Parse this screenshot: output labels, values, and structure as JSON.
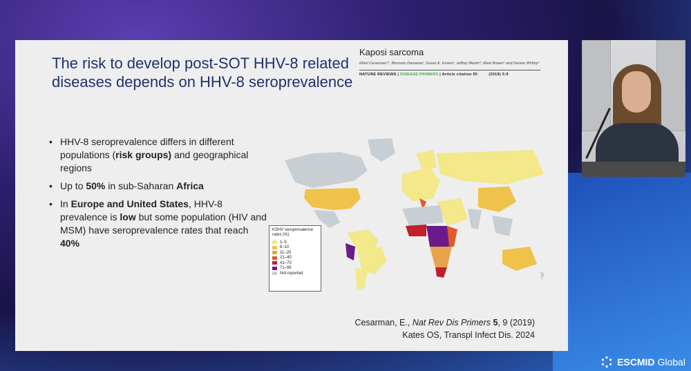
{
  "slide": {
    "title": "The risk to develop post-SOT HHV-8 related diseases depends on HHV-8 seroprevalence",
    "bullets": [
      {
        "parts": [
          {
            "t": "HHV-8 seroprevalence differs in different populations (",
            "b": false
          },
          {
            "t": "risk groups)",
            "b": true
          },
          {
            "t": " and geographical regions",
            "b": false
          }
        ]
      },
      {
        "parts": [
          {
            "t": "Up to ",
            "b": false
          },
          {
            "t": "50%",
            "b": true
          },
          {
            "t": " in sub-Saharan ",
            "b": false
          },
          {
            "t": "Africa",
            "b": true
          }
        ]
      },
      {
        "parts": [
          {
            "t": "In ",
            "b": false
          },
          {
            "t": "Europe and United States",
            "b": true
          },
          {
            "t": ", HHV-8 prevalence is ",
            "b": false
          },
          {
            "t": "low",
            "b": true
          },
          {
            "t": " but some population (HIV and MSM) have seroprevalence rates that reach ",
            "b": false
          },
          {
            "t": "40%",
            "b": true
          }
        ]
      }
    ],
    "paper": {
      "title": "Kaposi sarcoma",
      "authors": "Ethel Cesarman¹*, Blossom Damania², Susan E. Krown³, Jeffrey Martin⁴, Mark Bower⁵ and Denise Whitby⁶",
      "journal_a": "NATURE REVIEWS | ",
      "journal_b": "DISEASE PRIMERS",
      "journal_c": " | Article citation ID:",
      "journal_d": "(2019) 5:9"
    },
    "legend": {
      "title": "KSHV seroprevalence rates (%)",
      "items": [
        {
          "label": "1–5",
          "color": "#f3e88a"
        },
        {
          "label": "6–10",
          "color": "#efc24a"
        },
        {
          "label": "11–20",
          "color": "#e8a24a"
        },
        {
          "label": "21–40",
          "color": "#e05a2a"
        },
        {
          "label": "41–70",
          "color": "#c0202a"
        },
        {
          "label": "71–95",
          "color": "#6a1a8a"
        },
        {
          "label": "Not reported",
          "color": "#c8cfd4"
        }
      ]
    },
    "refs": {
      "line1_a": "Cesarman, E., ",
      "line1_b": "Nat Rev Dis Primers",
      "line1_c": " 5",
      "line1_d": ", 9 (2019)",
      "line2": "Kates OS, Transpl Infect Dis. 2024"
    }
  },
  "branding": {
    "logo_bold": "ESCMID",
    "logo_rest": "Global"
  }
}
